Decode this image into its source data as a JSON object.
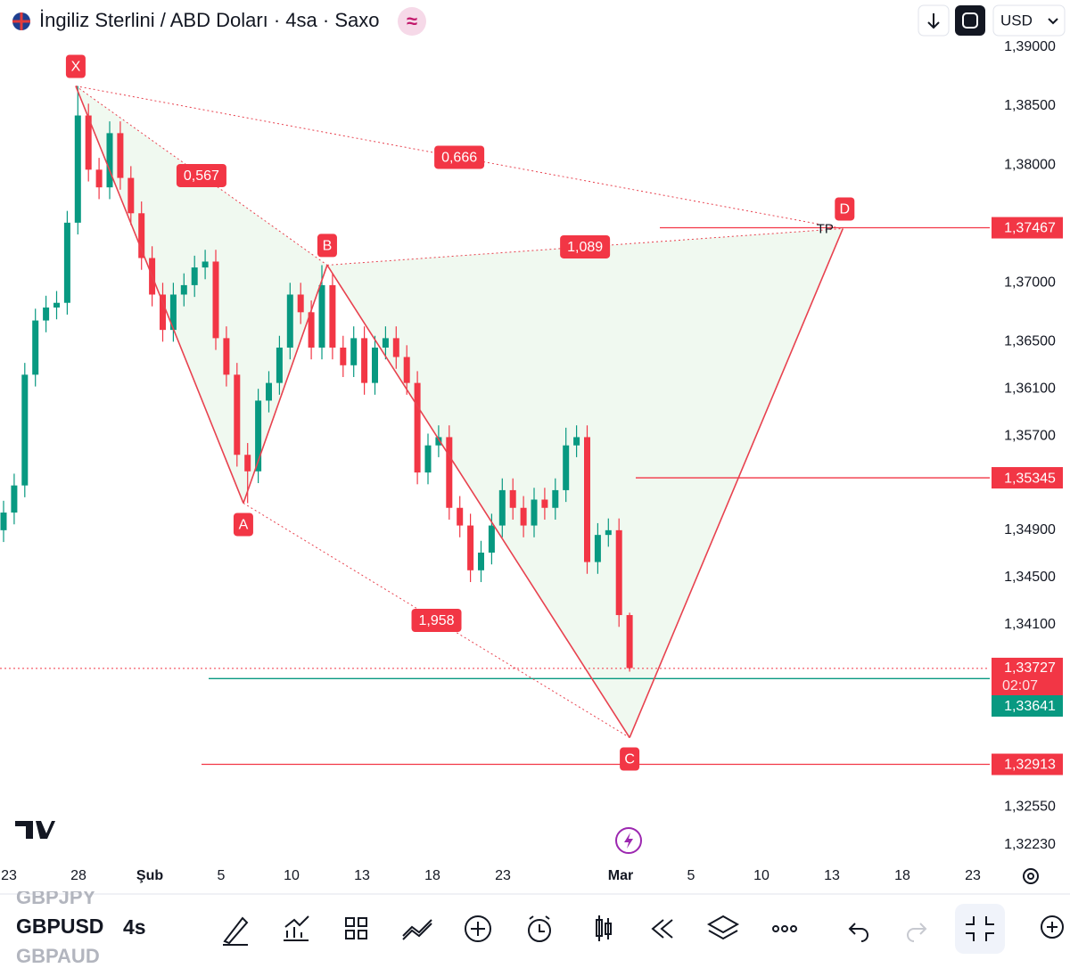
{
  "header": {
    "title": "İngiliz Sterlini / ABD Doları · 4sa · Saxo",
    "badge": "≈",
    "currency": "USD"
  },
  "toolbar": {
    "symbols": [
      "GBPJPY",
      "GBPUSD",
      "GBPAUD"
    ],
    "interval": "4s"
  },
  "chart_data": {
    "type": "candlestick",
    "colors": {
      "up": "#089981",
      "down": "#f23645",
      "pattern": "#e8424f"
    },
    "ylim": [
      1.321,
      1.394
    ],
    "yticks": [
      {
        "value": 1.39,
        "label": "1,39000"
      },
      {
        "value": 1.385,
        "label": "1,38500"
      },
      {
        "value": 1.38,
        "label": "1,38000"
      },
      {
        "value": 1.37,
        "label": "1,37000"
      },
      {
        "value": 1.365,
        "label": "1,36500"
      },
      {
        "value": 1.361,
        "label": "1,36100"
      },
      {
        "value": 1.357,
        "label": "1,35700"
      },
      {
        "value": 1.349,
        "label": "1,34900"
      },
      {
        "value": 1.345,
        "label": "1,34500"
      },
      {
        "value": 1.341,
        "label": "1,34100"
      },
      {
        "value": 1.3255,
        "label": "1,32550"
      },
      {
        "value": 1.3223,
        "label": "1,32230"
      }
    ],
    "x_axis_labels": [
      "23",
      "28",
      "Şub",
      "5",
      "10",
      "13",
      "18",
      "23",
      "Mar",
      "5",
      "10",
      "13",
      "18",
      "23"
    ],
    "candles": {
      "open": [
        1.349,
        1.3505,
        1.3528,
        1.3622,
        1.3668,
        1.3679,
        1.3683,
        1.3751,
        1.3842,
        1.3796,
        1.3781,
        1.3827,
        1.3789,
        1.3759,
        1.3721,
        1.369,
        1.366,
        1.369,
        1.3698,
        1.3713,
        1.3718,
        1.3653,
        1.3622,
        1.3554,
        1.354,
        1.36,
        1.3615,
        1.3645,
        1.369,
        1.3675,
        1.3645,
        1.3698,
        1.3645,
        1.363,
        1.3653,
        1.3615,
        1.3645,
        1.3653,
        1.3637,
        1.3615,
        1.3539,
        1.3562,
        1.3569,
        1.3509,
        1.3494,
        1.3456,
        1.3471,
        1.3494,
        1.3524,
        1.3509,
        1.3494,
        1.3516,
        1.3509,
        1.3524,
        1.3562,
        1.3569,
        1.3463,
        1.3486,
        1.349,
        1.3418
      ],
      "high": [
        1.3515,
        1.3538,
        1.3632,
        1.3678,
        1.3689,
        1.3693,
        1.3761,
        1.3867,
        1.3852,
        1.3806,
        1.3837,
        1.3837,
        1.3799,
        1.3769,
        1.3731,
        1.37,
        1.37,
        1.3708,
        1.3723,
        1.3728,
        1.3728,
        1.3663,
        1.3632,
        1.3564,
        1.361,
        1.3625,
        1.3655,
        1.37,
        1.37,
        1.3685,
        1.3715,
        1.3708,
        1.3655,
        1.3663,
        1.3663,
        1.3655,
        1.3663,
        1.3663,
        1.3647,
        1.3625,
        1.3572,
        1.3579,
        1.3579,
        1.3519,
        1.3504,
        1.3481,
        1.3504,
        1.3534,
        1.3534,
        1.3519,
        1.3526,
        1.3526,
        1.3534,
        1.3577,
        1.3579,
        1.3579,
        1.3496,
        1.35,
        1.35,
        1.342
      ],
      "low": [
        1.348,
        1.3495,
        1.3518,
        1.3612,
        1.3658,
        1.3669,
        1.3673,
        1.3741,
        1.3786,
        1.3771,
        1.3771,
        1.3779,
        1.3749,
        1.3711,
        1.368,
        1.365,
        1.365,
        1.368,
        1.3688,
        1.3703,
        1.3643,
        1.3612,
        1.3544,
        1.3513,
        1.353,
        1.359,
        1.3605,
        1.3635,
        1.3665,
        1.3635,
        1.3635,
        1.3635,
        1.362,
        1.362,
        1.3605,
        1.3605,
        1.3635,
        1.3627,
        1.3605,
        1.3529,
        1.3529,
        1.3552,
        1.3499,
        1.3484,
        1.3446,
        1.3446,
        1.3461,
        1.3484,
        1.3499,
        1.3484,
        1.3484,
        1.3499,
        1.3499,
        1.3514,
        1.3552,
        1.3453,
        1.3453,
        1.3476,
        1.3408,
        1.337
      ],
      "close": [
        1.3505,
        1.3528,
        1.3622,
        1.3668,
        1.3679,
        1.3683,
        1.3751,
        1.3842,
        1.3796,
        1.3781,
        1.3827,
        1.3789,
        1.3759,
        1.3721,
        1.369,
        1.366,
        1.369,
        1.3698,
        1.3713,
        1.3718,
        1.3653,
        1.3622,
        1.3554,
        1.354,
        1.36,
        1.3615,
        1.3645,
        1.369,
        1.3675,
        1.3645,
        1.3698,
        1.3645,
        1.363,
        1.3653,
        1.3615,
        1.3645,
        1.3653,
        1.3637,
        1.3615,
        1.3539,
        1.3562,
        1.3569,
        1.3509,
        1.3494,
        1.3456,
        1.3471,
        1.3494,
        1.3524,
        1.3509,
        1.3494,
        1.3516,
        1.3509,
        1.3524,
        1.3562,
        1.3569,
        1.3463,
        1.3486,
        1.349,
        1.3418,
        1.3373
      ]
    },
    "pattern": {
      "points": [
        "X",
        "A",
        "B",
        "C",
        "D"
      ],
      "x": [
        6.8,
        22.6,
        30.5,
        59,
        79.1
      ],
      "y": [
        1.3867,
        1.3513,
        1.3715,
        1.3314,
        1.3746
      ],
      "ratios": [
        "0,567",
        "0,666",
        "1,089",
        "1,958"
      ],
      "target": "TP"
    },
    "levels": [
      {
        "value": 1.37467,
        "label": "1,37467",
        "color": "#f23645"
      },
      {
        "value": 1.35345,
        "label": "1,35345",
        "color": "#f23645"
      },
      {
        "value": 1.33727,
        "label": "1,33727",
        "color": "#f23645",
        "style": "dotted",
        "countdown": "02:07"
      },
      {
        "value": 1.33641,
        "label": "1,33641",
        "color": "#089981"
      },
      {
        "value": 1.32913,
        "label": "1,32913",
        "color": "#f23645"
      }
    ]
  }
}
